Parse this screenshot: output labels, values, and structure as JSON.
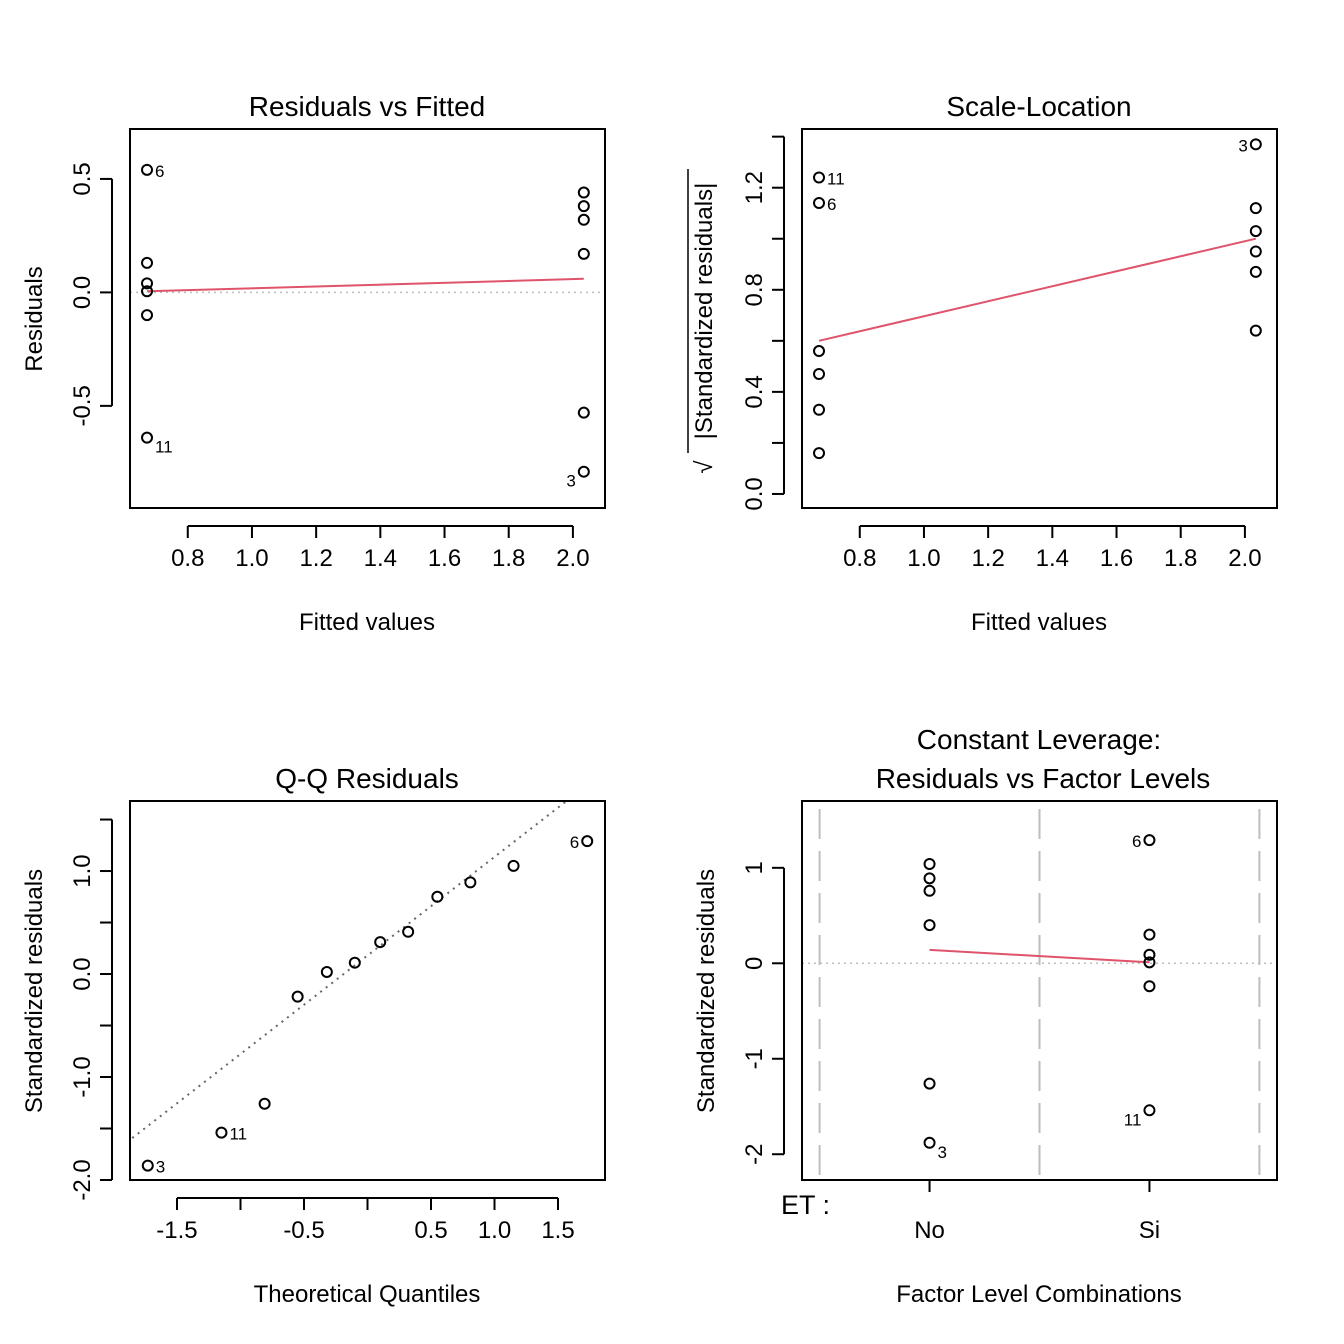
{
  "colors": {
    "smooth": "#DF536B",
    "refline": "#BEBEBE",
    "qqline": "#666666",
    "points": "#000000"
  },
  "chart_data": [
    {
      "id": "resfit",
      "type": "scatter",
      "title": "Residuals vs Fitted",
      "xlabel": "Fitted values",
      "ylabel": "Residuals",
      "xlim": [
        0.62,
        2.1
      ],
      "ylim": [
        -0.95,
        0.72
      ],
      "xticks": [
        0.8,
        1.0,
        1.2,
        1.4,
        1.6,
        1.8,
        2.0
      ],
      "xtick_labels": [
        "0.8",
        "1.0",
        "1.2",
        "1.4",
        "1.6",
        "1.8",
        "2.0"
      ],
      "yticks": [
        -0.5,
        0.0,
        0.5
      ],
      "ytick_labels": [
        "-0.5",
        "0.0",
        "0.5"
      ],
      "points": [
        {
          "x": 0.673,
          "y": 0.54,
          "label": "6",
          "lpos": "right"
        },
        {
          "x": 0.673,
          "y": 0.13
        },
        {
          "x": 0.673,
          "y": 0.04
        },
        {
          "x": 0.673,
          "y": 0.005
        },
        {
          "x": 0.673,
          "y": -0.1
        },
        {
          "x": 0.673,
          "y": -0.64,
          "label": "11",
          "lpos": "right-low"
        },
        {
          "x": 2.034,
          "y": 0.44
        },
        {
          "x": 2.034,
          "y": 0.38
        },
        {
          "x": 2.034,
          "y": 0.32
        },
        {
          "x": 2.034,
          "y": 0.17
        },
        {
          "x": 2.034,
          "y": -0.53
        },
        {
          "x": 2.034,
          "y": -0.79,
          "label": "3",
          "lpos": "left-low"
        }
      ],
      "smooth": [
        [
          0.673,
          0.005
        ],
        [
          2.034,
          0.06
        ]
      ],
      "hline": 0
    },
    {
      "id": "scaleloc",
      "type": "scatter",
      "title": "Scale-Location",
      "xlabel": "Fitted values",
      "ylabel_sqrt": "√",
      "ylabel": "|Standardized residuals|",
      "xlim": [
        0.62,
        2.1
      ],
      "ylim": [
        -0.055,
        1.43
      ],
      "xticks": [
        0.8,
        1.0,
        1.2,
        1.4,
        1.6,
        1.8,
        2.0
      ],
      "xtick_labels": [
        "0.8",
        "1.0",
        "1.2",
        "1.4",
        "1.6",
        "1.8",
        "2.0"
      ],
      "yticks": [
        0.0,
        0.2,
        0.4,
        0.6,
        0.8,
        1.0,
        1.2,
        1.4
      ],
      "ytick_labels": [
        "0.0",
        "",
        "0.4",
        "",
        "0.8",
        "",
        "1.2",
        ""
      ],
      "points": [
        {
          "x": 0.673,
          "y": 1.24,
          "label": "11",
          "lpos": "right"
        },
        {
          "x": 0.673,
          "y": 1.14,
          "label": "6",
          "lpos": "right"
        },
        {
          "x": 0.673,
          "y": 0.56
        },
        {
          "x": 0.673,
          "y": 0.47
        },
        {
          "x": 0.673,
          "y": 0.33
        },
        {
          "x": 0.673,
          "y": 0.16
        },
        {
          "x": 2.034,
          "y": 1.37,
          "label": "3",
          "lpos": "left"
        },
        {
          "x": 2.034,
          "y": 1.12
        },
        {
          "x": 2.034,
          "y": 1.03
        },
        {
          "x": 2.034,
          "y": 0.95
        },
        {
          "x": 2.034,
          "y": 0.87
        },
        {
          "x": 2.034,
          "y": 0.64
        }
      ],
      "smooth": [
        [
          0.673,
          0.6
        ],
        [
          2.034,
          1.0
        ]
      ]
    },
    {
      "id": "qq",
      "type": "scatter",
      "title": "Q-Q Residuals",
      "xlabel": "Theoretical Quantiles",
      "ylabel": "Standardized residuals",
      "xlim": [
        -1.87,
        1.87
      ],
      "ylim": [
        -2.0,
        1.68
      ],
      "xticks": [
        -1.5,
        -1.0,
        -0.5,
        0.0,
        0.5,
        1.0,
        1.5
      ],
      "xtick_labels": [
        "-1.5",
        "",
        "-0.5",
        "",
        "0.5",
        "1.0",
        "1.5"
      ],
      "yticks": [
        -2.0,
        -1.5,
        -1.0,
        -0.5,
        0.0,
        0.5,
        1.0,
        1.5
      ],
      "ytick_labels": [
        "-2.0",
        "",
        "-1.0",
        "",
        "0.0",
        "",
        "1.0",
        ""
      ],
      "points": [
        {
          "x": -1.73,
          "y": -1.86,
          "label": "3",
          "lpos": "right"
        },
        {
          "x": -1.15,
          "y": -1.54,
          "label": "11",
          "lpos": "right"
        },
        {
          "x": -0.81,
          "y": -1.26
        },
        {
          "x": -0.55,
          "y": -0.22
        },
        {
          "x": -0.32,
          "y": 0.02
        },
        {
          "x": -0.1,
          "y": 0.11
        },
        {
          "x": 0.1,
          "y": 0.31
        },
        {
          "x": 0.32,
          "y": 0.41
        },
        {
          "x": 0.55,
          "y": 0.75
        },
        {
          "x": 0.81,
          "y": 0.89
        },
        {
          "x": 1.15,
          "y": 1.05
        },
        {
          "x": 1.73,
          "y": 1.29,
          "label": "6",
          "lpos": "left"
        }
      ],
      "qqline": {
        "intercept": 0.18,
        "slope": 0.957
      }
    },
    {
      "id": "factor",
      "type": "scatter",
      "title_line1": "Constant Leverage:",
      "title_line2": "Residuals vs Factor Levels",
      "xlabel": "Factor Level Combinations",
      "ylabel": "Standardized residuals",
      "factor_name": "ET :",
      "xlim": [
        0.42,
        2.58
      ],
      "ylim": [
        -2.27,
        1.7
      ],
      "categories": [
        "No",
        "Si"
      ],
      "yticks": [
        -2,
        -1,
        0,
        1
      ],
      "ytick_labels": [
        "-2",
        "-1",
        "0",
        "1"
      ],
      "dividers": [
        0.5,
        1.5,
        2.5
      ],
      "points": [
        {
          "x": 1,
          "y": 1.04
        },
        {
          "x": 1,
          "y": 0.89
        },
        {
          "x": 1,
          "y": 0.76
        },
        {
          "x": 1,
          "y": 0.4
        },
        {
          "x": 1,
          "y": -1.26
        },
        {
          "x": 1,
          "y": -1.88,
          "label": "3",
          "lpos": "right-low"
        },
        {
          "x": 2,
          "y": 1.29,
          "label": "6",
          "lpos": "left"
        },
        {
          "x": 2,
          "y": 0.3
        },
        {
          "x": 2,
          "y": 0.09
        },
        {
          "x": 2,
          "y": 0.01
        },
        {
          "x": 2,
          "y": -0.24
        },
        {
          "x": 2,
          "y": -1.54,
          "label": "11",
          "lpos": "left-low"
        }
      ],
      "smooth": [
        [
          1,
          0.14
        ],
        [
          2,
          0.01
        ]
      ],
      "hline": 0
    }
  ]
}
